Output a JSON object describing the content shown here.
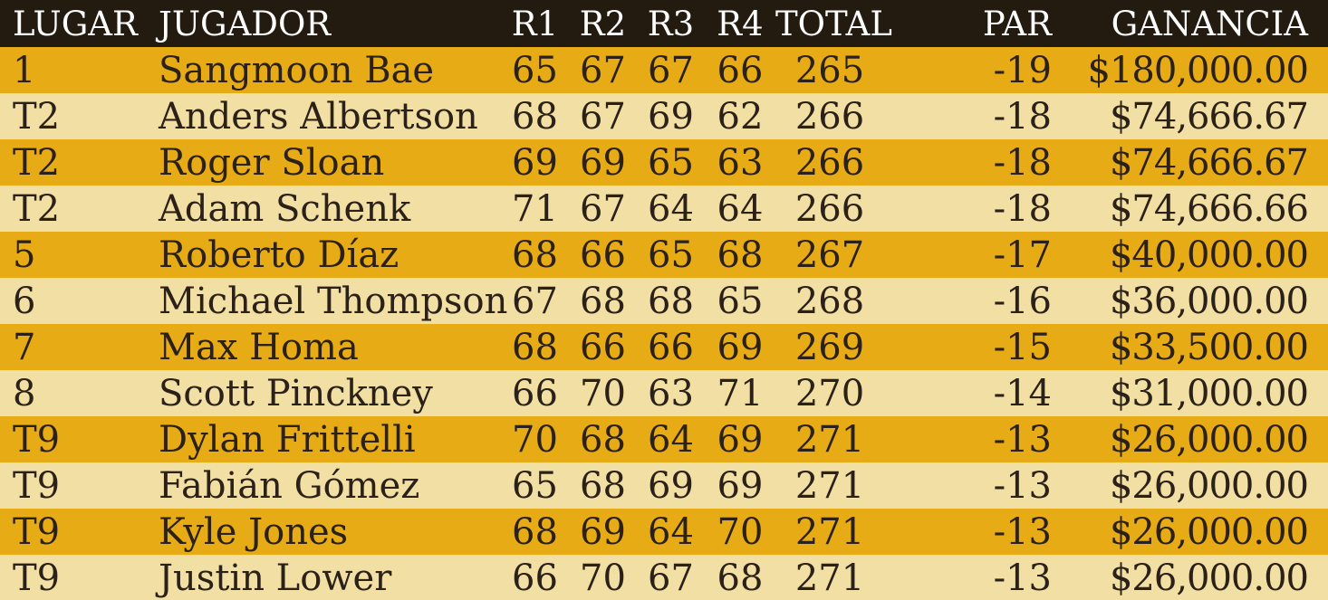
{
  "colors": {
    "header_bg": "#231a10",
    "header_text": "#fdfdfd",
    "row_gold": "#e7ac15",
    "row_cream": "#f2dfa3",
    "body_text": "#2b2119"
  },
  "chart_data": {
    "type": "table",
    "title": "",
    "columns": [
      "LUGAR",
      "JUGADOR",
      "R1",
      "R2",
      "R3",
      "R4",
      "TOTAL",
      "PAR",
      "GANANCIA"
    ],
    "column_keys": [
      "lugar",
      "jugador",
      "r1",
      "r2",
      "r3",
      "r4",
      "total",
      "par",
      "ganancia"
    ],
    "rows": [
      [
        "1",
        "Sangmoon Bae",
        "65",
        "67",
        "67",
        "66",
        "265",
        "-19",
        "$180,000.00"
      ],
      [
        "T2",
        "Anders Albertson",
        "68",
        "67",
        "69",
        "62",
        "266",
        "-18",
        "$74,666.67"
      ],
      [
        "T2",
        "Roger Sloan",
        "69",
        "69",
        "65",
        "63",
        "266",
        "-18",
        "$74,666.67"
      ],
      [
        "T2",
        "Adam Schenk",
        "71",
        "67",
        "64",
        "64",
        "266",
        "-18",
        "$74,666.66"
      ],
      [
        "5",
        "Roberto Díaz",
        "68",
        "66",
        "65",
        "68",
        "267",
        "-17",
        "$40,000.00"
      ],
      [
        "6",
        "Michael Thompson",
        "67",
        "68",
        "68",
        "65",
        "268",
        "-16",
        "$36,000.00"
      ],
      [
        "7",
        "Max Homa",
        "68",
        "66",
        "66",
        "69",
        "269",
        "-15",
        "$33,500.00"
      ],
      [
        "8",
        "Scott Pinckney",
        "66",
        "70",
        "63",
        "71",
        "270",
        "-14",
        "$31,000.00"
      ],
      [
        "T9",
        "Dylan Frittelli",
        "70",
        "68",
        "64",
        "69",
        "271",
        "-13",
        "$26,000.00"
      ],
      [
        "T9",
        "Fabián Gómez",
        "65",
        "68",
        "69",
        "69",
        "271",
        "-13",
        "$26,000.00"
      ],
      [
        "T9",
        "Kyle Jones",
        "68",
        "69",
        "64",
        "70",
        "271",
        "-13",
        "$26,000.00"
      ],
      [
        "T9",
        "Justin Lower",
        "66",
        "70",
        "67",
        "68",
        "271",
        "-13",
        "$26,000.00"
      ]
    ]
  }
}
